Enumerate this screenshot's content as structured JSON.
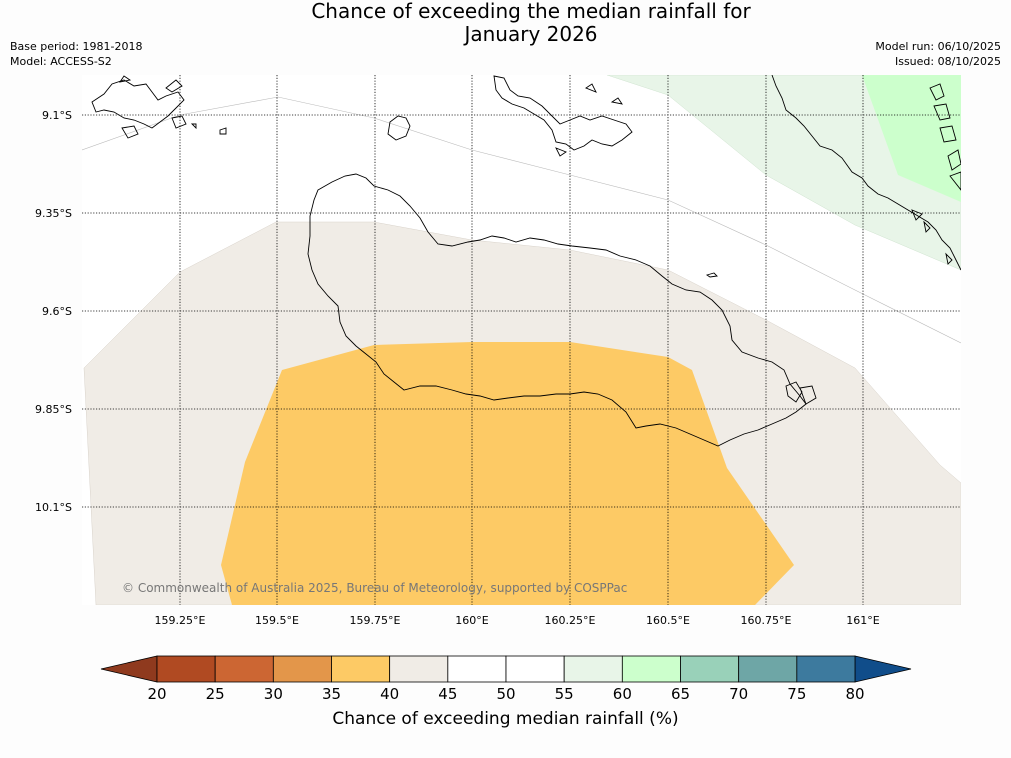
{
  "title": {
    "line1": "Chance of exceeding the median rainfall for",
    "line2": "January 2026"
  },
  "meta_left": {
    "base_period": "Base period: 1981-2018",
    "model": "Model: ACCESS-S2"
  },
  "meta_right": {
    "model_run": "Model run: 06/10/2025",
    "issued": "Issued: 08/10/2025"
  },
  "map": {
    "latitude_labels": [
      "9.1°S",
      "9.35°S",
      "9.6°S",
      "9.85°S",
      "10.1°S"
    ],
    "longitude_labels": [
      "159.25°E",
      "159.5°E",
      "159.75°E",
      "160°E",
      "160.25°E",
      "160.5°E",
      "160.75°E",
      "161°E"
    ],
    "copyright": "© Commonwealth of Australia 2025, Bureau of Meteorology, supported by COSPPac",
    "regions": [
      {
        "category": "40-45",
        "color": "#f0ece6"
      },
      {
        "category": "35-40",
        "color": "#fdca65"
      },
      {
        "category": "55-60",
        "color": "#e8f5e8"
      },
      {
        "category": "60-65",
        "color": "#ccffcc"
      }
    ]
  },
  "colorbar": {
    "label": "Chance of exceeding median rainfall (%)",
    "ticks": [
      "20",
      "25",
      "30",
      "35",
      "40",
      "45",
      "50",
      "55",
      "60",
      "65",
      "70",
      "75",
      "80"
    ],
    "under_color": "#8f3a1e",
    "over_color": "#104d8a",
    "colors": [
      "#b04a22",
      "#cc6633",
      "#e3964a",
      "#fdca65",
      "#f0ece6",
      "#ffffff",
      "#ffffff",
      "#e8f5e8",
      "#ccffcc",
      "#99d1b9",
      "#6ea6a6",
      "#3d7a9e"
    ]
  }
}
